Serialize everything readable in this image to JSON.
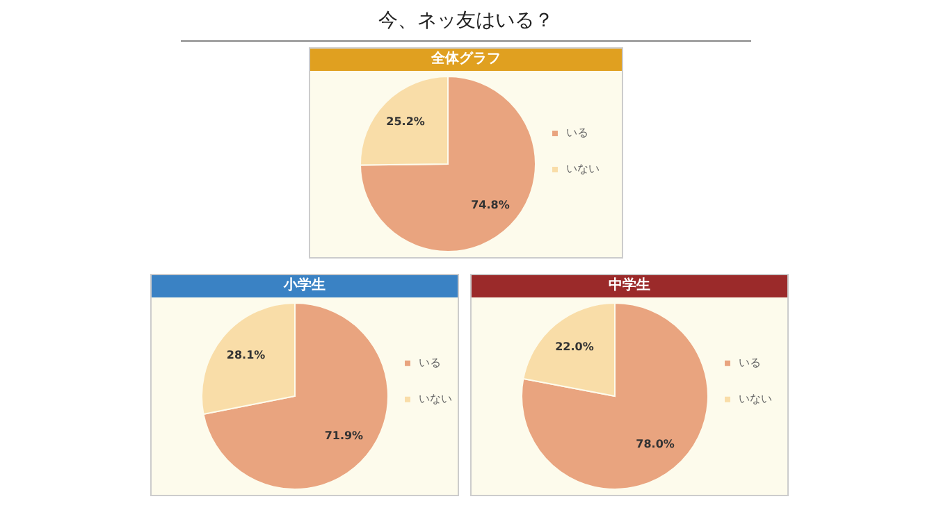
{
  "chart_data": [
    {
      "type": "pie",
      "title": "今、ネッ友はいる？",
      "subtitle": "全体グラフ",
      "categories": [
        "いる",
        "いない"
      ],
      "values": [
        74.8,
        25.2
      ],
      "colors": [
        "#e9a47f",
        "#f9dda8"
      ],
      "value_labels": [
        "74.8%",
        "25.2%"
      ],
      "legend": "right"
    },
    {
      "type": "pie",
      "title": "小学生",
      "categories": [
        "いる",
        "いない"
      ],
      "values": [
        71.9,
        28.1
      ],
      "colors": [
        "#e9a47f",
        "#f9dda8"
      ],
      "value_labels": [
        "71.9%",
        "28.1%"
      ],
      "legend": "right"
    },
    {
      "type": "pie",
      "title": "中学生",
      "categories": [
        "いる",
        "いない"
      ],
      "values": [
        78.0,
        22.0
      ],
      "colors": [
        "#e9a47f",
        "#f9dda8"
      ],
      "value_labels": [
        "78.0%",
        "22.0%"
      ],
      "legend": "right"
    }
  ]
}
